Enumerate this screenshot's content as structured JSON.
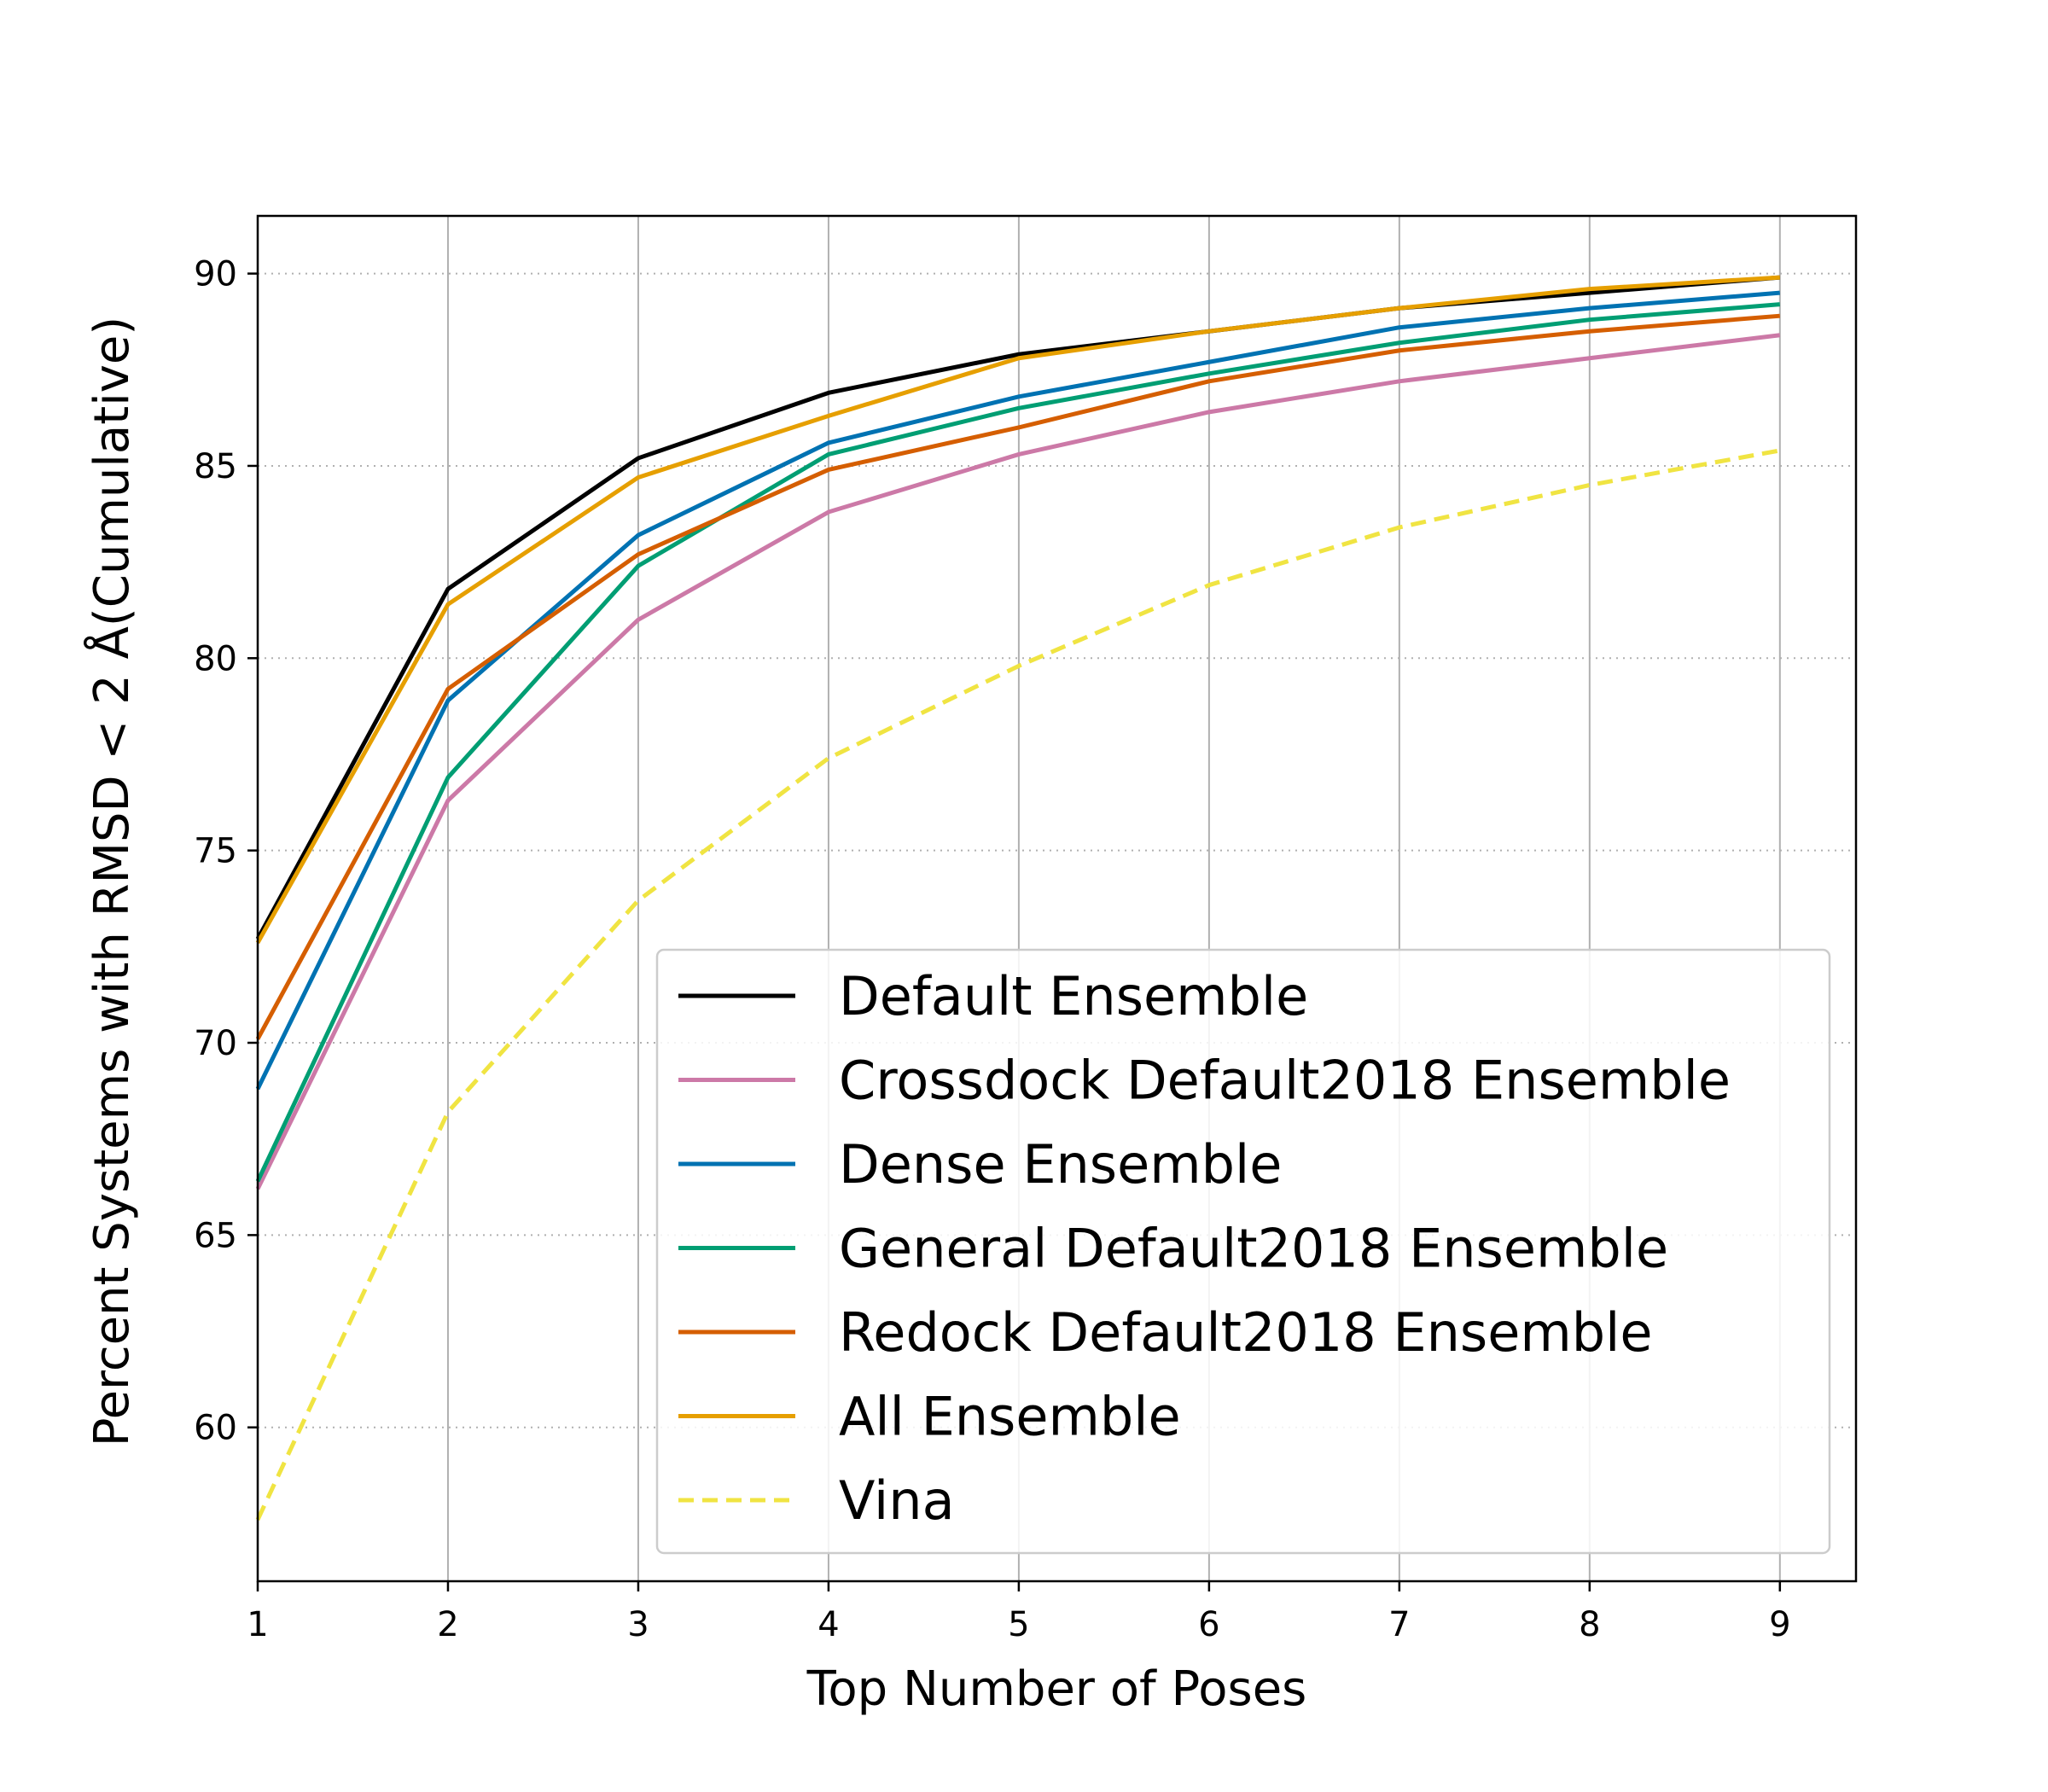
{
  "chart_data": {
    "type": "line",
    "title": "",
    "xlabel": "Top Number of Poses",
    "ylabel": "Percent Systems with RMSD < 2 Å(Cumulative)",
    "x": [
      1,
      2,
      3,
      4,
      5,
      6,
      7,
      8,
      9
    ],
    "xlim": [
      1,
      9.4
    ],
    "ylim": [
      56,
      91.5
    ],
    "xticks": [
      "1",
      "2",
      "3",
      "4",
      "5",
      "6",
      "7",
      "8",
      "9"
    ],
    "yticks": [
      "60",
      "65",
      "70",
      "75",
      "80",
      "85",
      "90"
    ],
    "grid": {
      "x": "solid",
      "y": "dotted"
    },
    "legend_position": "lower-right",
    "series": [
      {
        "name": "Default Ensemble",
        "color": "#000000",
        "dash": "solid",
        "values": [
          72.7,
          81.8,
          85.2,
          86.9,
          87.9,
          88.5,
          89.1,
          89.5,
          89.9
        ]
      },
      {
        "name": "Crossdock Default2018 Ensemble",
        "color": "#cc79a7",
        "dash": "solid",
        "values": [
          66.2,
          76.3,
          81.0,
          83.8,
          85.3,
          86.4,
          87.2,
          87.8,
          88.4
        ]
      },
      {
        "name": "Dense Ensemble",
        "color": "#0072b2",
        "dash": "solid",
        "values": [
          68.8,
          78.9,
          83.2,
          85.6,
          86.8,
          87.7,
          88.6,
          89.1,
          89.5
        ]
      },
      {
        "name": "General Default2018 Ensemble",
        "color": "#009e73",
        "dash": "solid",
        "values": [
          66.4,
          76.9,
          82.4,
          85.3,
          86.5,
          87.4,
          88.2,
          88.8,
          89.2
        ]
      },
      {
        "name": "Redock Default2018 Ensemble",
        "color": "#d55e00",
        "dash": "solid",
        "values": [
          70.1,
          79.2,
          82.7,
          84.9,
          86.0,
          87.2,
          88.0,
          88.5,
          88.9
        ]
      },
      {
        "name": "All Ensemble",
        "color": "#e69f00",
        "dash": "solid",
        "values": [
          72.6,
          81.4,
          84.7,
          86.3,
          87.8,
          88.5,
          89.1,
          89.6,
          89.9
        ]
      },
      {
        "name": "Vina",
        "color": "#f0e442",
        "dash": "dashed",
        "values": [
          57.6,
          68.2,
          73.7,
          77.4,
          79.8,
          81.9,
          83.4,
          84.5,
          85.4
        ]
      }
    ]
  }
}
